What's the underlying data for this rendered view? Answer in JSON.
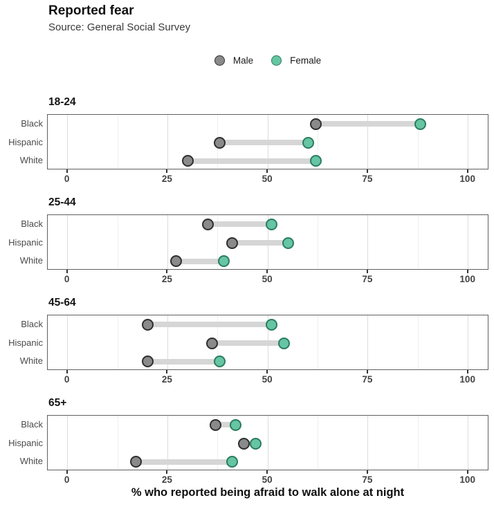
{
  "header": {
    "title": "Reported fear",
    "subtitle": "Source: General Social Survey"
  },
  "colors": {
    "male_fill": "#8a8a8a",
    "male_stroke": "#2f2f2f",
    "female_fill": "#66c5a2",
    "female_stroke": "#2b7c61",
    "bar": "#d6d6d6",
    "grid_major": "#dcdcdc",
    "grid_minor": "#efefef",
    "panel_border": "#606060"
  },
  "chart_data": {
    "type": "dumbbell",
    "title": "Reported fear",
    "subtitle": "Source: General Social Survey",
    "xlabel": "% who reported being afraid to walk alone at night",
    "xlim": [
      -5,
      105
    ],
    "x_ticks": [
      0,
      25,
      50,
      75,
      100
    ],
    "x_minor_ticks": [
      12.5,
      37.5,
      62.5,
      87.5
    ],
    "grid": "vertical-only",
    "legend": [
      "Male",
      "Female"
    ],
    "legend_position": "top-center",
    "categories": [
      "Black",
      "Hispanic",
      "White"
    ],
    "facets": [
      {
        "age_group": "18-24",
        "series": [
          {
            "name": "Male",
            "values": [
              62,
              38,
              30
            ]
          },
          {
            "name": "Female",
            "values": [
              88,
              60,
              62
            ]
          }
        ]
      },
      {
        "age_group": "25-44",
        "series": [
          {
            "name": "Male",
            "values": [
              35,
              41,
              27
            ]
          },
          {
            "name": "Female",
            "values": [
              51,
              55,
              39
            ]
          }
        ]
      },
      {
        "age_group": "45-64",
        "series": [
          {
            "name": "Male",
            "values": [
              20,
              36,
              20
            ]
          },
          {
            "name": "Female",
            "values": [
              51,
              54,
              38
            ]
          }
        ]
      },
      {
        "age_group": "65+",
        "series": [
          {
            "name": "Male",
            "values": [
              37,
              44,
              17
            ]
          },
          {
            "name": "Female",
            "values": [
              42,
              47,
              41
            ]
          }
        ]
      }
    ]
  }
}
